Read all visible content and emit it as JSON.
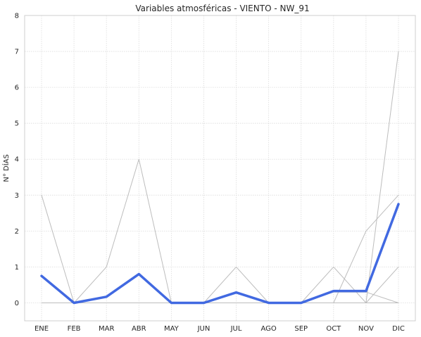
{
  "chart_data": {
    "type": "line",
    "title": "Variables atmosféricas - VIENTO - NW_91",
    "xlabel": "",
    "ylabel": "N° DÍAS",
    "categories": [
      "ENE",
      "FEB",
      "MAR",
      "ABR",
      "MAY",
      "JUN",
      "JUL",
      "AGO",
      "SEP",
      "OCT",
      "NOV",
      "DIC"
    ],
    "ylim": [
      -0.5,
      8
    ],
    "yticks": [
      0,
      1,
      2,
      3,
      4,
      5,
      6,
      7,
      8
    ],
    "grid": true,
    "legend": "none",
    "series": [
      {
        "role": "background",
        "color": "#bdbdbd",
        "width": 1,
        "values": [
          3,
          0,
          1,
          4,
          0,
          0,
          1,
          0,
          0,
          1,
          0,
          7
        ]
      },
      {
        "role": "background",
        "color": "#bdbdbd",
        "width": 1,
        "values": [
          0,
          0,
          0,
          0,
          0,
          0,
          0,
          0,
          0,
          0,
          2,
          3
        ]
      },
      {
        "role": "background",
        "color": "#bdbdbd",
        "width": 1,
        "values": [
          0,
          0,
          0,
          0,
          0,
          0,
          0,
          0,
          0,
          0,
          0,
          1
        ]
      },
      {
        "role": "background",
        "color": "#bdbdbd",
        "width": 1,
        "values": [
          0,
          0,
          0,
          0,
          0,
          0,
          0,
          0,
          0,
          0.3,
          0.3,
          0
        ]
      },
      {
        "role": "background",
        "color": "#bdbdbd",
        "width": 1,
        "values": [
          0,
          0,
          0,
          0,
          0,
          0,
          0,
          0,
          0,
          0,
          0,
          0
        ]
      },
      {
        "role": "mean",
        "color": "#4169e1",
        "width": 3.5,
        "values": [
          0.75,
          0,
          0.17,
          0.8,
          0,
          0,
          0.29,
          0,
          0,
          0.33,
          0.33,
          2.75
        ]
      }
    ]
  }
}
